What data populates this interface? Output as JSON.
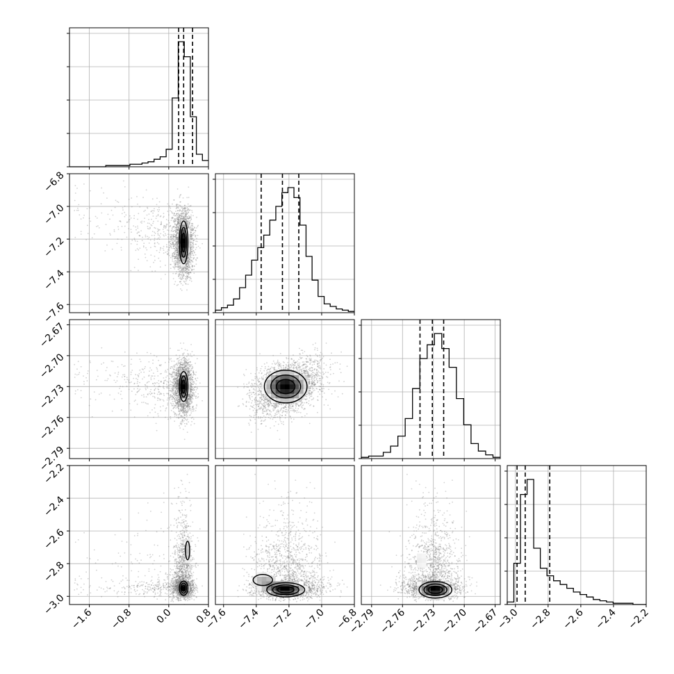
{
  "chart_data": {
    "type": "corner",
    "grid": true,
    "parameters": [
      {
        "range": [
          -2.0,
          0.8
        ],
        "ticks": [
          -1.6,
          -0.8,
          0.0,
          0.8
        ],
        "tick_labels": [
          "−1.6",
          "−0.8",
          "0.0",
          "0.8"
        ],
        "quantiles": [
          0.2,
          0.3,
          0.48
        ],
        "hist": [
          0.0,
          0.0,
          0.0,
          0.0,
          0.0,
          0.0,
          0.01,
          0.01,
          0.01,
          0.01,
          0.02,
          0.02,
          0.03,
          0.04,
          0.06,
          0.08,
          0.14,
          0.55,
          1.0,
          0.88,
          0.4,
          0.1,
          0.05
        ]
      },
      {
        "range": [
          -7.65,
          -6.8
        ],
        "ticks": [
          -7.6,
          -7.4,
          -7.2,
          -7.0,
          -6.8
        ],
        "tick_labels": [
          "−7.6",
          "−7.4",
          "−7.2",
          "−7.0",
          "−6.8"
        ],
        "quantiles": [
          -7.37,
          -7.24,
          -7.14
        ],
        "hist": [
          0.02,
          0.04,
          0.06,
          0.11,
          0.2,
          0.3,
          0.42,
          0.52,
          0.62,
          0.74,
          0.85,
          0.96,
          1.0,
          0.92,
          0.7,
          0.45,
          0.26,
          0.13,
          0.07,
          0.05,
          0.03,
          0.02,
          0.01
        ]
      },
      {
        "range": [
          -2.8,
          -2.665
        ],
        "ticks": [
          -2.79,
          -2.76,
          -2.73,
          -2.7,
          -2.67
        ],
        "tick_labels": [
          "−2.79",
          "−2.76",
          "−2.73",
          "−2.70",
          "−2.67"
        ],
        "quantiles": [
          -2.743,
          -2.731,
          -2.72
        ],
        "hist": [
          0.01,
          0.02,
          0.02,
          0.05,
          0.1,
          0.18,
          0.32,
          0.56,
          0.8,
          0.91,
          1.0,
          0.88,
          0.73,
          0.48,
          0.27,
          0.12,
          0.06,
          0.03,
          0.01
        ]
      },
      {
        "range": [
          -3.05,
          -2.2
        ],
        "ticks": [
          -3.0,
          -2.8,
          -2.6,
          -2.4,
          -2.2
        ],
        "tick_labels": [
          "−3.0",
          "−2.8",
          "−2.6",
          "−2.4",
          "−2.2"
        ],
        "quantiles": [
          -2.99,
          -2.94,
          -2.79
        ],
        "hist": [
          0.02,
          0.33,
          0.88,
          1.0,
          0.45,
          0.29,
          0.23,
          0.19,
          0.16,
          0.13,
          0.1,
          0.08,
          0.06,
          0.04,
          0.03,
          0.02,
          0.01,
          0.01,
          0.01,
          0.0,
          0.0
        ]
      }
    ]
  }
}
